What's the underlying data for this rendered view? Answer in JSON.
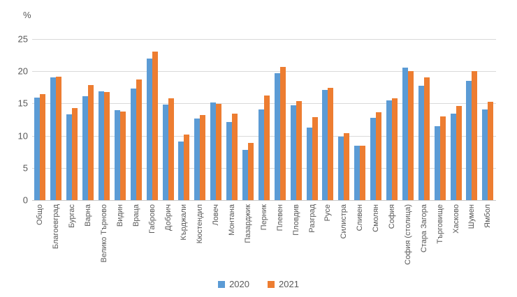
{
  "chart_data": {
    "type": "bar",
    "title": "",
    "unit_label": "%",
    "xlabel": "",
    "ylabel": "%",
    "ylim": [
      0,
      25
    ],
    "y_ticks": [
      25,
      20,
      15,
      10,
      5,
      0
    ],
    "grid": "horizontal",
    "legend_position": "bottom",
    "categories": [
      "Общо",
      "Благоевград",
      "Бургас",
      "Варна",
      "Велико Търново",
      "Видин",
      "Враца",
      "Габрово",
      "Добрич",
      "Кърджали",
      "Кюстендил",
      "Ловеч",
      "Монтана",
      "Пазарджик",
      "Перник",
      "Плевен",
      "Пловдив",
      "Разград",
      "Русе",
      "Силистра",
      "Сливен",
      "Смолян",
      "София",
      "София (столица)",
      "Стара Загора",
      "Търговище",
      "Хасково",
      "Шумен",
      "Ямбол"
    ],
    "series": [
      {
        "name": "2020",
        "color": "#5B9BD5",
        "values": [
          15.9,
          19.0,
          13.3,
          16.1,
          16.9,
          14.0,
          17.3,
          22.0,
          14.8,
          9.1,
          12.7,
          15.2,
          12.1,
          7.8,
          14.1,
          19.7,
          14.7,
          11.3,
          17.1,
          9.9,
          8.5,
          12.8,
          15.5,
          20.6,
          17.8,
          11.5,
          13.4,
          18.5,
          14.1
        ]
      },
      {
        "name": "2021",
        "color": "#ED7D31",
        "values": [
          16.5,
          19.2,
          14.3,
          17.9,
          16.8,
          13.7,
          18.7,
          23.1,
          15.8,
          10.2,
          13.2,
          14.9,
          13.4,
          8.9,
          16.2,
          20.7,
          15.4,
          12.9,
          17.4,
          10.4,
          8.5,
          13.6,
          15.8,
          20.0,
          19.0,
          13.0,
          14.6,
          20.0,
          15.3
        ]
      }
    ],
    "colors": {
      "gridline": "#d9d9d9",
      "axis_text": "#595959"
    }
  }
}
